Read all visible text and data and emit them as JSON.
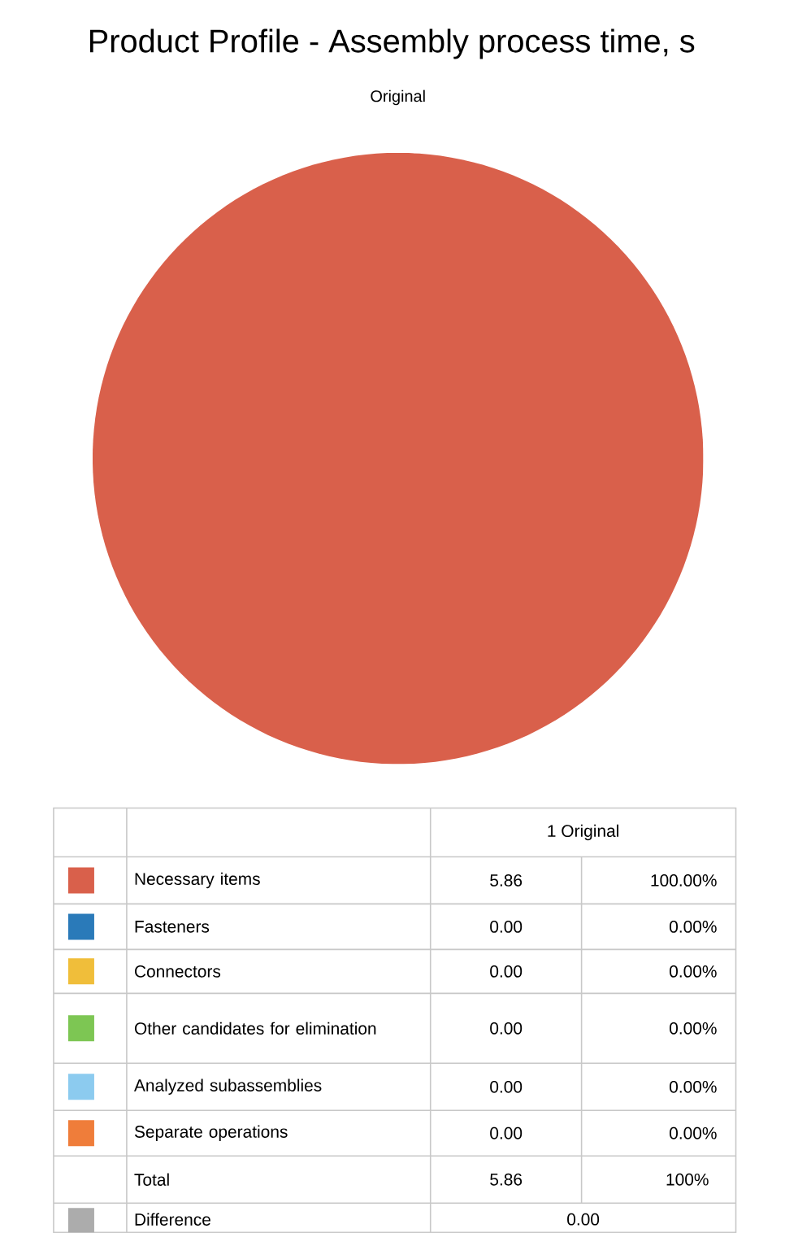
{
  "chart_data": {
    "type": "pie",
    "title": "Product Profile - Assembly process time, s",
    "subtitle": "Original",
    "legend_title": "1 Original",
    "categories": [
      "Necessary items",
      "Fasteners",
      "Connectors",
      "Other candidates for elimination",
      "Analyzed subassemblies",
      "Separate operations"
    ],
    "values": [
      5.86,
      0,
      0,
      0,
      0,
      0
    ],
    "value_labels": [
      "5.86",
      "0.00",
      "0.00",
      "0.00",
      "0.00",
      "0.00"
    ],
    "colors": [
      "#d9604b",
      "#2a7ab9",
      "#f0be3a",
      "#7dc653",
      "#8ccbef",
      "#ef7d3a"
    ],
    "legend": "bottom",
    "annotations": [
      "100.00%",
      "0.00%",
      "0.00%",
      "0.00%",
      "0.00%",
      "0.00%",
      "Total",
      "5.86",
      "100%",
      "Difference",
      "0.00"
    ]
  }
}
